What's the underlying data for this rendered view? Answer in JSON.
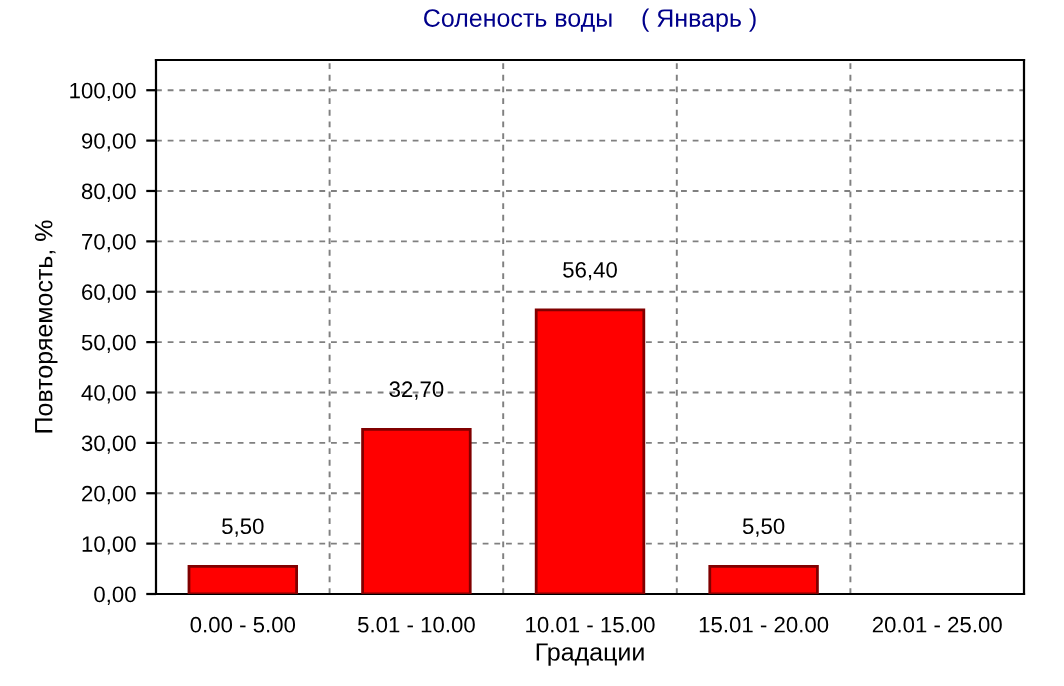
{
  "chart_data": {
    "type": "bar",
    "title": "Соленость воды    ( Январь )",
    "xlabel": "Градации",
    "ylabel": "Повторяемость, %",
    "categories": [
      "0.00 - 5.00",
      "5.01 - 10.00",
      "10.01 - 15.00",
      "15.01 - 20.00",
      "20.01 - 25.00"
    ],
    "values": [
      5.5,
      32.7,
      56.4,
      5.5,
      null
    ],
    "value_labels": [
      "5,50",
      "32,70",
      "56,40",
      "5,50",
      null
    ],
    "color": "#ff0000",
    "ylim": [
      0,
      106
    ],
    "yticks": [
      {
        "value": 0,
        "label": "0,00"
      },
      {
        "value": 10,
        "label": "10,00"
      },
      {
        "value": 20,
        "label": "20,00"
      },
      {
        "value": 30,
        "label": "30,00"
      },
      {
        "value": 40,
        "label": "40,00"
      },
      {
        "value": 50,
        "label": "50,00"
      },
      {
        "value": 60,
        "label": "60,00"
      },
      {
        "value": 70,
        "label": "70,00"
      },
      {
        "value": 80,
        "label": "80,00"
      },
      {
        "value": 90,
        "label": "90,00"
      },
      {
        "value": 100,
        "label": "100,00"
      }
    ],
    "grid": true
  }
}
